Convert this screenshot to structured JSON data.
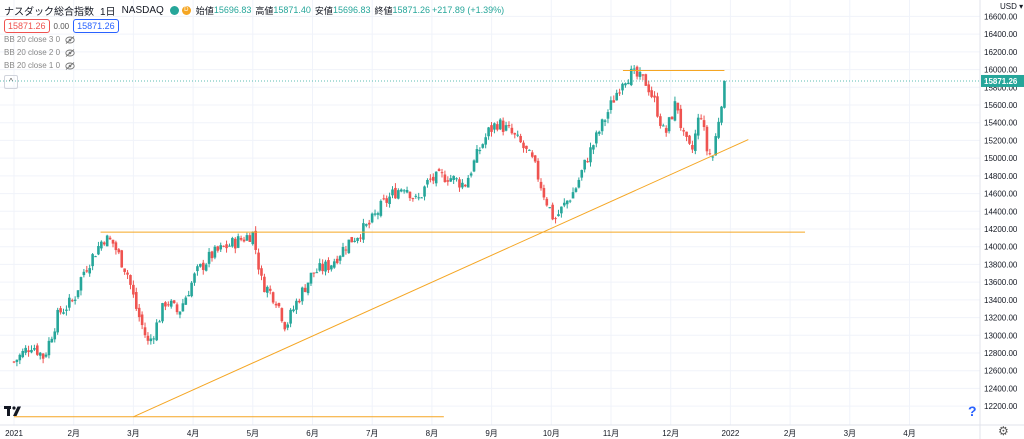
{
  "header": {
    "symbol_title": "ナスダック総合指数",
    "interval": "1日",
    "exchange": "NASDAQ",
    "market_status": "D",
    "ohlc": [
      {
        "k": "始値",
        "v": "15696.83"
      },
      {
        "k": "高値",
        "v": "15871.40"
      },
      {
        "k": "安値",
        "v": "15696.83"
      },
      {
        "k": "終値",
        "v": "15871.26"
      }
    ],
    "change": "+217.89 (+1.39%)",
    "sell_price": "15871.26",
    "spread": "0.00",
    "buy_price": "15871.26"
  },
  "indicators": [
    {
      "label": "BB 20 close 3 0"
    },
    {
      "label": "BB 20 close 2 0"
    },
    {
      "label": "BB 20 close 1 0"
    }
  ],
  "currency": "USD",
  "last_price_label": "15871.26",
  "colors": {
    "up": "#26a69a",
    "down": "#ef5350",
    "trendline": "#f5a623",
    "last_price": "#26a69a"
  },
  "chart_data": {
    "type": "candlestick",
    "y_range": [
      12100,
      16650
    ],
    "x_range_months": [
      0,
      15.6
    ],
    "y_ticks": [
      "12200.00",
      "12400.00",
      "12600.00",
      "12800.00",
      "13000.00",
      "13200.00",
      "13400.00",
      "13600.00",
      "13800.00",
      "14000.00",
      "14200.00",
      "14400.00",
      "14600.00",
      "14800.00",
      "15000.00",
      "15200.00",
      "15400.00",
      "15600.00",
      "15800.00",
      "16000.00",
      "16200.00",
      "16400.00",
      "16600.00"
    ],
    "x_ticks": [
      {
        "label": "2021",
        "t": 0
      },
      {
        "label": "2月",
        "t": 1
      },
      {
        "label": "3月",
        "t": 2
      },
      {
        "label": "4月",
        "t": 3
      },
      {
        "label": "5月",
        "t": 4
      },
      {
        "label": "6月",
        "t": 5
      },
      {
        "label": "7月",
        "t": 6
      },
      {
        "label": "8月",
        "t": 7
      },
      {
        "label": "9月",
        "t": 8
      },
      {
        "label": "10月",
        "t": 9
      },
      {
        "label": "11月",
        "t": 10
      },
      {
        "label": "12月",
        "t": 11
      },
      {
        "label": "2022",
        "t": 12
      },
      {
        "label": "2月",
        "t": 13
      },
      {
        "label": "3月",
        "t": 14
      },
      {
        "label": "4月",
        "t": 15
      }
    ],
    "anchors": [
      [
        0,
        12700
      ],
      [
        0.3,
        12900
      ],
      [
        0.5,
        12750
      ],
      [
        0.75,
        13250
      ],
      [
        1.0,
        13400
      ],
      [
        1.15,
        13700
      ],
      [
        1.5,
        14100
      ],
      [
        1.65,
        14050
      ],
      [
        1.9,
        13700
      ],
      [
        2.05,
        13300
      ],
      [
        2.25,
        12900
      ],
      [
        2.35,
        13050
      ],
      [
        2.55,
        13400
      ],
      [
        2.75,
        13250
      ],
      [
        3.05,
        13700
      ],
      [
        3.3,
        13900
      ],
      [
        3.55,
        14000
      ],
      [
        4.0,
        14150
      ],
      [
        4.15,
        13600
      ],
      [
        4.4,
        13400
      ],
      [
        4.55,
        13100
      ],
      [
        4.75,
        13400
      ],
      [
        5.0,
        13700
      ],
      [
        5.3,
        13800
      ],
      [
        5.6,
        14050
      ],
      [
        5.95,
        14250
      ],
      [
        6.15,
        14450
      ],
      [
        6.35,
        14600
      ],
      [
        6.55,
        14700
      ],
      [
        6.75,
        14500
      ],
      [
        6.95,
        14750
      ],
      [
        7.25,
        14800
      ],
      [
        7.55,
        14700
      ],
      [
        7.8,
        15100
      ],
      [
        7.95,
        15300
      ],
      [
        8.1,
        15400
      ],
      [
        8.3,
        15300
      ],
      [
        8.5,
        15150
      ],
      [
        8.7,
        14950
      ],
      [
        8.9,
        14550
      ],
      [
        9.05,
        14300
      ],
      [
        9.2,
        14450
      ],
      [
        9.4,
        14650
      ],
      [
        9.6,
        15000
      ],
      [
        9.8,
        15300
      ],
      [
        10.0,
        15600
      ],
      [
        10.2,
        15900
      ],
      [
        10.35,
        15950
      ],
      [
        10.6,
        15850
      ],
      [
        10.75,
        15600
      ],
      [
        10.9,
        15250
      ],
      [
        11.1,
        15650
      ],
      [
        11.2,
        15250
      ],
      [
        11.35,
        15050
      ],
      [
        11.5,
        15550
      ],
      [
        11.6,
        15100
      ],
      [
        11.7,
        15000
      ],
      [
        11.85,
        15653
      ],
      [
        11.9,
        15871
      ]
    ],
    "trendlines": [
      {
        "from": [
          10.2,
          15990
        ],
        "to": [
          11.9,
          15990
        ]
      },
      {
        "from": [
          1.45,
          14165
        ],
        "to": [
          13.25,
          14165
        ]
      },
      {
        "from": [
          2.0,
          12080
        ],
        "to": [
          12.3,
          15210
        ]
      },
      {
        "from": [
          0,
          12080
        ],
        "to": [
          7.2,
          12080
        ]
      }
    ],
    "last_price": 15871.26
  }
}
